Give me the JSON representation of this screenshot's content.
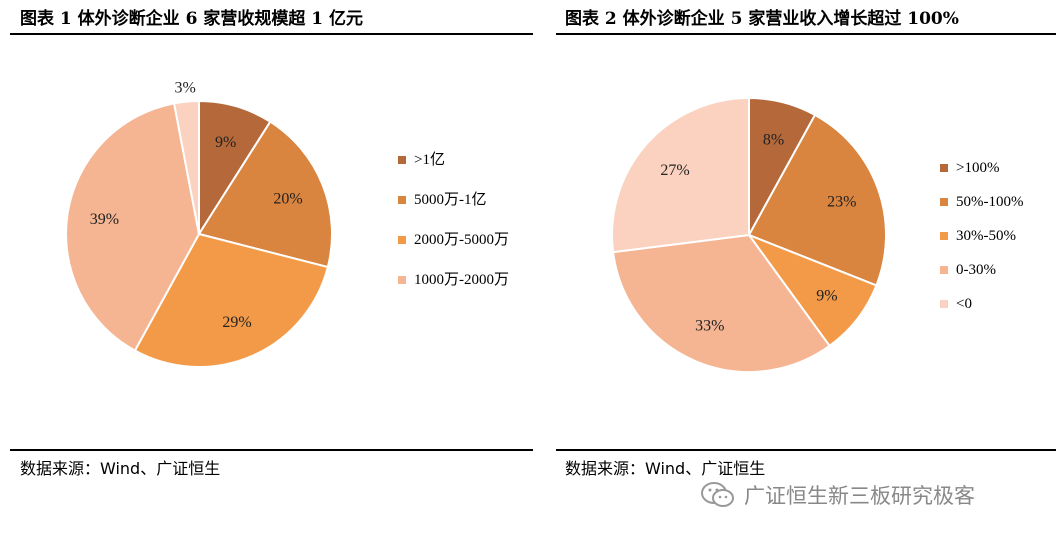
{
  "left_panel": {
    "title": "图表 1 体外诊断企业 6 家营收规模超 1 亿元",
    "source": "数据来源：Wind、广证恒生"
  },
  "right_panel": {
    "title": "图表 2 体外诊断企业 5 家营业收入增长超过 100%",
    "source": "数据来源：Wind、广证恒生"
  },
  "watermark": {
    "text": "广证恒生新三板研究极客",
    "icon": "wechat-icon"
  },
  "chart_data": [
    {
      "type": "pie",
      "categories": [
        ">1亿",
        "5000万-1亿",
        "2000万-5000万",
        "1000万-2000万",
        ""
      ],
      "values": [
        9,
        20,
        29,
        39,
        3
      ],
      "labels": [
        "9%",
        "20%",
        "29%",
        "39%",
        "3%"
      ],
      "colors": [
        "#B5693A",
        "#D9843F",
        "#F39A48",
        "#F5B593",
        "#FAD2BF"
      ],
      "legend_position": "right",
      "legend": [
        {
          "label": ">1亿",
          "color": "#B5693A"
        },
        {
          "label": "5000万-1亿",
          "color": "#D9843F"
        },
        {
          "label": "2000万-5000万",
          "color": "#F39A48"
        },
        {
          "label": "1000万-2000万",
          "color": "#F5B593"
        }
      ]
    },
    {
      "type": "pie",
      "categories": [
        ">100%",
        "50%-100%",
        "30%-50%",
        "0-30%",
        "<0"
      ],
      "values": [
        8,
        23,
        9,
        33,
        27
      ],
      "labels": [
        "8%",
        "23%",
        "9%",
        "33%",
        "27%"
      ],
      "colors": [
        "#B5693A",
        "#D9843F",
        "#F39A48",
        "#F5B593",
        "#FAD2BF"
      ],
      "legend_position": "right",
      "legend": [
        {
          "label": ">100%",
          "color": "#B5693A"
        },
        {
          "label": "50%-100%",
          "color": "#D9843F"
        },
        {
          "label": "30%-50%",
          "color": "#F39A48"
        },
        {
          "label": "0-30%",
          "color": "#F5B593"
        },
        {
          "label": "<0",
          "color": "#FAD2BF"
        }
      ]
    }
  ]
}
